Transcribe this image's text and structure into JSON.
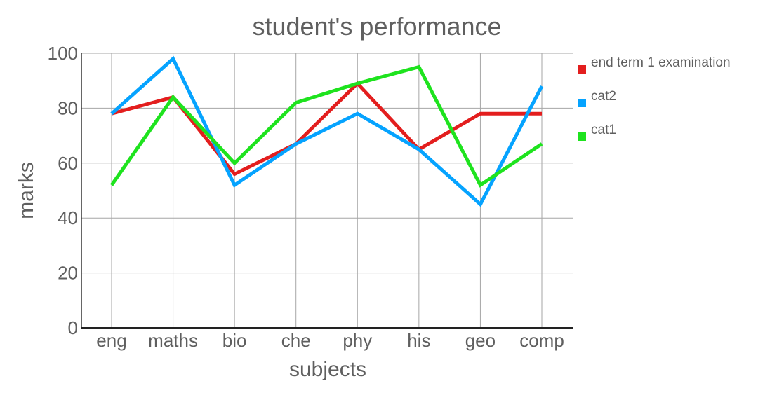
{
  "chart_data": {
    "type": "line",
    "title": "student's performance",
    "xlabel": "subjects",
    "ylabel": "marks",
    "categories": [
      "eng",
      "maths",
      "bio",
      "che",
      "phy",
      "his",
      "geo",
      "comp"
    ],
    "ylim": [
      0,
      100
    ],
    "yticks": [
      0,
      20,
      40,
      60,
      80,
      100
    ],
    "grid": true,
    "legend_position": "right",
    "series": [
      {
        "name": "end term 1 examination",
        "color": "#e31e1e",
        "values": [
          78,
          84,
          56,
          67,
          89,
          65,
          78,
          78
        ]
      },
      {
        "name": "cat2",
        "color": "#05a3ff",
        "values": [
          78,
          98,
          52,
          67,
          78,
          65,
          45,
          88
        ]
      },
      {
        "name": "cat1",
        "color": "#1ee31e",
        "values": [
          52,
          84,
          60,
          82,
          89,
          95,
          52,
          67
        ]
      }
    ]
  }
}
